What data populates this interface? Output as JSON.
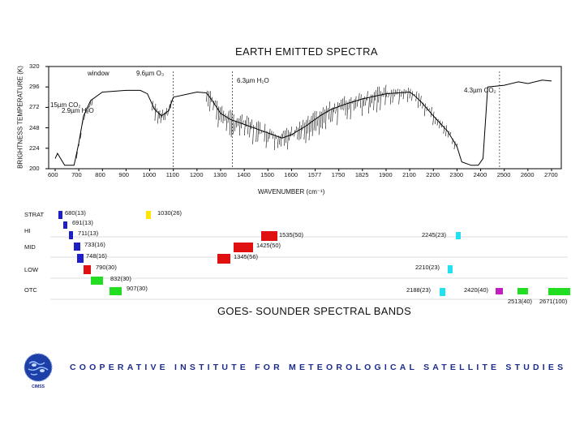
{
  "chart_data": {
    "type": "line",
    "title": "EARTH EMITTED SPECTRA",
    "ylabel": "BRIGHTNESS TEMPERATURE (K)",
    "xlabel": "WAVENUMBER (cm⁻¹)",
    "y_ticks": [
      "320",
      "296",
      "272",
      "248",
      "224",
      "200"
    ],
    "ylim": [
      200,
      320
    ],
    "x_ticks": [
      "600",
      "700",
      "800",
      "900",
      "1000",
      "1100",
      "1200",
      "1300",
      "1400",
      "1500",
      "1600",
      "1577",
      "1750",
      "1825",
      "1900",
      "2100",
      "2200",
      "2300",
      "2400",
      "2500",
      "2600",
      "2700"
    ],
    "annotations": [
      "window",
      "9.6µm O₃",
      "6.3µm H₂O",
      "4.3µm CO₂",
      "15µm CO₂",
      "2.9µm H₂O"
    ],
    "series": [
      {
        "points": [
          [
            0.0,
            212
          ],
          [
            0.1,
            218
          ],
          [
            0.4,
            204
          ],
          [
            0.8,
            204
          ],
          [
            1.0,
            230
          ],
          [
            1.2,
            262
          ],
          [
            1.5,
            280
          ],
          [
            2.0,
            290
          ],
          [
            3.0,
            292
          ],
          [
            3.6,
            292
          ],
          [
            3.9,
            288
          ],
          [
            4.2,
            270
          ],
          [
            4.5,
            262
          ],
          [
            4.8,
            268
          ],
          [
            5.0,
            284
          ],
          [
            6.0,
            290
          ],
          [
            6.4,
            289
          ],
          [
            6.6,
            282
          ],
          [
            7.0,
            265
          ],
          [
            7.4,
            258
          ],
          [
            8.0,
            252
          ],
          [
            8.6,
            246
          ],
          [
            9.2,
            240
          ],
          [
            9.6,
            236
          ],
          [
            10.0,
            240
          ],
          [
            10.6,
            250
          ],
          [
            11.2,
            262
          ],
          [
            11.7,
            270
          ],
          [
            12.3,
            276
          ],
          [
            13.0,
            282
          ],
          [
            14.0,
            288
          ],
          [
            15.0,
            290
          ],
          [
            15.2,
            286
          ],
          [
            15.5,
            278
          ],
          [
            16.0,
            262
          ],
          [
            16.6,
            244
          ],
          [
            17.0,
            226
          ],
          [
            17.2,
            208
          ],
          [
            17.6,
            204
          ],
          [
            17.9,
            204
          ],
          [
            18.1,
            212
          ],
          [
            18.3,
            296
          ],
          [
            19.0,
            298
          ],
          [
            19.6,
            302
          ],
          [
            20.0,
            300
          ],
          [
            20.6,
            304
          ],
          [
            21.0,
            303
          ]
        ]
      }
    ]
  },
  "bands_chart": {
    "title": "GOES- SOUNDER SPECTRAL BANDS",
    "row_labels": [
      "STRAT",
      "HI",
      "MID",
      "LOW",
      "OTC"
    ],
    "bands": [
      {
        "label": "680(13)",
        "color": "#1f1fc8",
        "col": 0,
        "row": 0
      },
      {
        "label": "1030(26)",
        "color": "#ffe600",
        "col": 1,
        "row": 0
      },
      {
        "label": "691(13)",
        "color": "#1f1fc8",
        "col": 2,
        "row": 1
      },
      {
        "label": "711(13)",
        "color": "#1f1fc8",
        "col": 3,
        "row": 2
      },
      {
        "label": "1535(50)",
        "color": "#e01010",
        "col": 4,
        "row": 2
      },
      {
        "label": "2245(23)",
        "color": "#22e0f0",
        "col": 5,
        "row": 2
      },
      {
        "label": "733(16)",
        "color": "#1f1fc8",
        "col": 6,
        "row": 3
      },
      {
        "label": "1425(50)",
        "color": "#e01010",
        "col": 7,
        "row": 3
      },
      {
        "label": "748(16)",
        "color": "#1f1fc8",
        "col": 8,
        "row": 4
      },
      {
        "label": "1345(56)",
        "color": "#e01010",
        "col": 9,
        "row": 4
      },
      {
        "label": "790(30)",
        "color": "#e01010",
        "col": 10,
        "row": 5
      },
      {
        "label": "2210(23)",
        "color": "#22e0f0",
        "col": 11,
        "row": 5
      },
      {
        "label": "832(30)",
        "color": "#22dd22",
        "col": 12,
        "row": 6
      },
      {
        "label": "907(30)",
        "color": "#22dd22",
        "col": 13,
        "row": 7
      },
      {
        "label": "2188(23)",
        "color": "#22e0f0",
        "col": 14,
        "row": 7
      },
      {
        "label": "2420(40)",
        "color": "#c020c0",
        "col": 15,
        "row": 7
      },
      {
        "label": "2513(40)",
        "color": "#22dd22",
        "col": 16,
        "row": 7
      },
      {
        "label": "2671(100)",
        "color": "#22dd22",
        "col": 17,
        "row": 7
      }
    ]
  },
  "footer": {
    "org_name": "COOPERATIVE INSTITUTE FOR METEOROLOGICAL SATELLITE STUDIES",
    "logo_text": "CIMSS"
  }
}
